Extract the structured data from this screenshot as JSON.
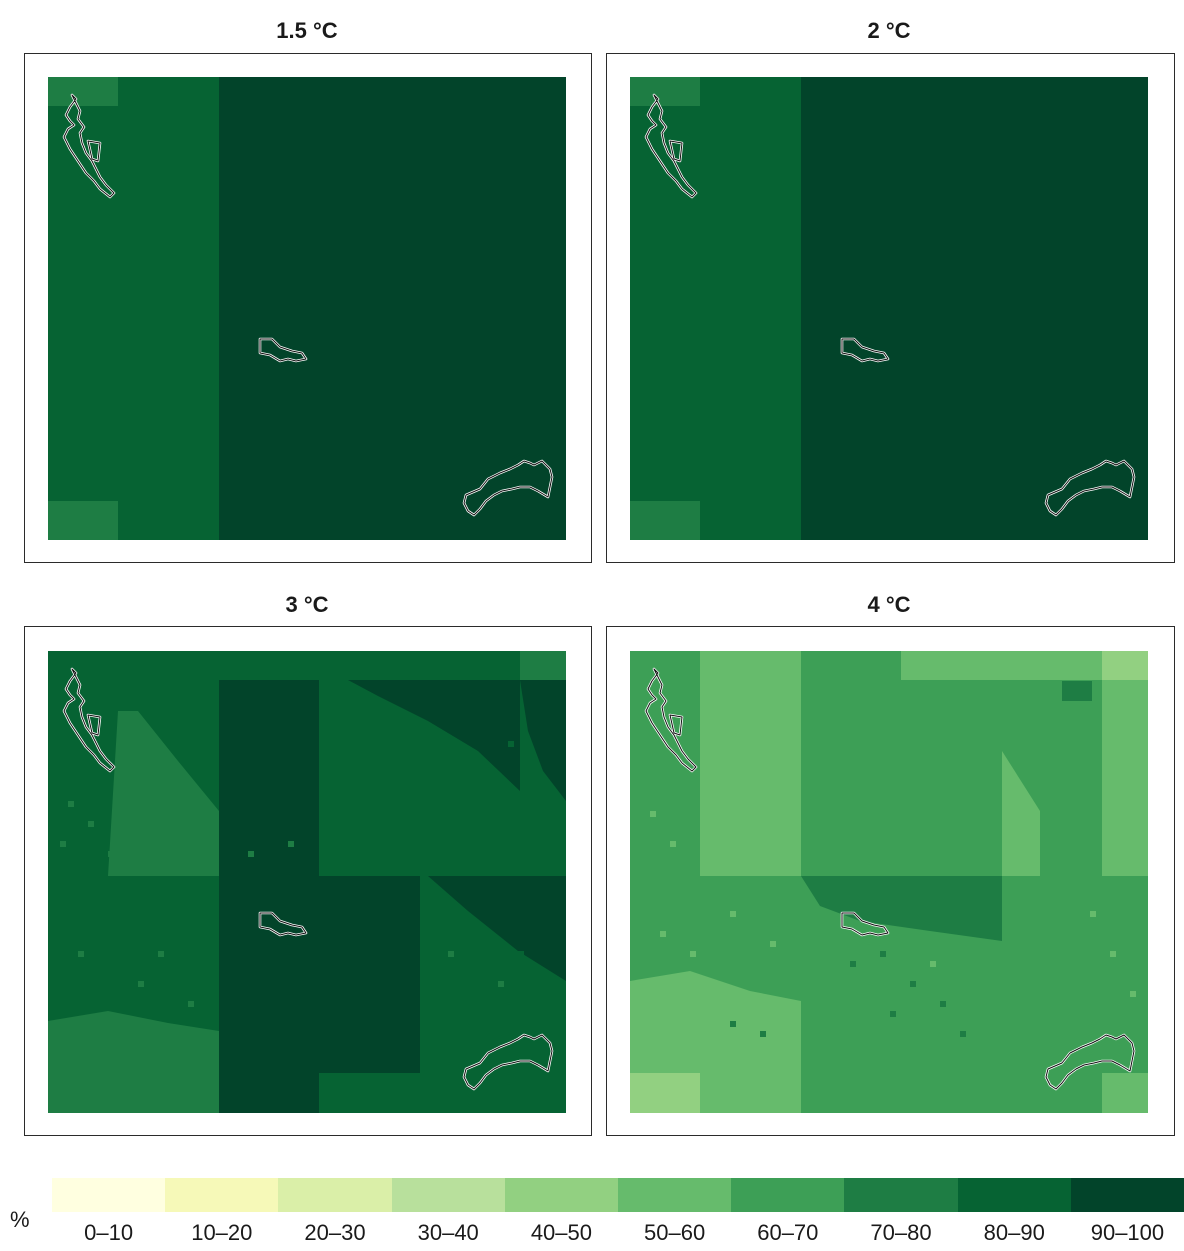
{
  "panels": [
    {
      "title": "1.5 °C"
    },
    {
      "title": "2 °C"
    },
    {
      "title": "3 °C"
    },
    {
      "title": "4 °C"
    }
  ],
  "legend": {
    "unit": "%",
    "classes": [
      {
        "label": "0–10",
        "color": "#ffffe0"
      },
      {
        "label": "10–20",
        "color": "#f6f9b8"
      },
      {
        "label": "20–30",
        "color": "#daefa8"
      },
      {
        "label": "30–40",
        "color": "#b8e09c"
      },
      {
        "label": "40–50",
        "color": "#92d081"
      },
      {
        "label": "50–60",
        "color": "#66bb6c"
      },
      {
        "label": "60–70",
        "color": "#3d9f56"
      },
      {
        "label": "70–80",
        "color": "#1e7d44"
      },
      {
        "label": "80–90",
        "color": "#066333"
      },
      {
        "label": "90–100",
        "color": "#02442a"
      }
    ]
  }
}
